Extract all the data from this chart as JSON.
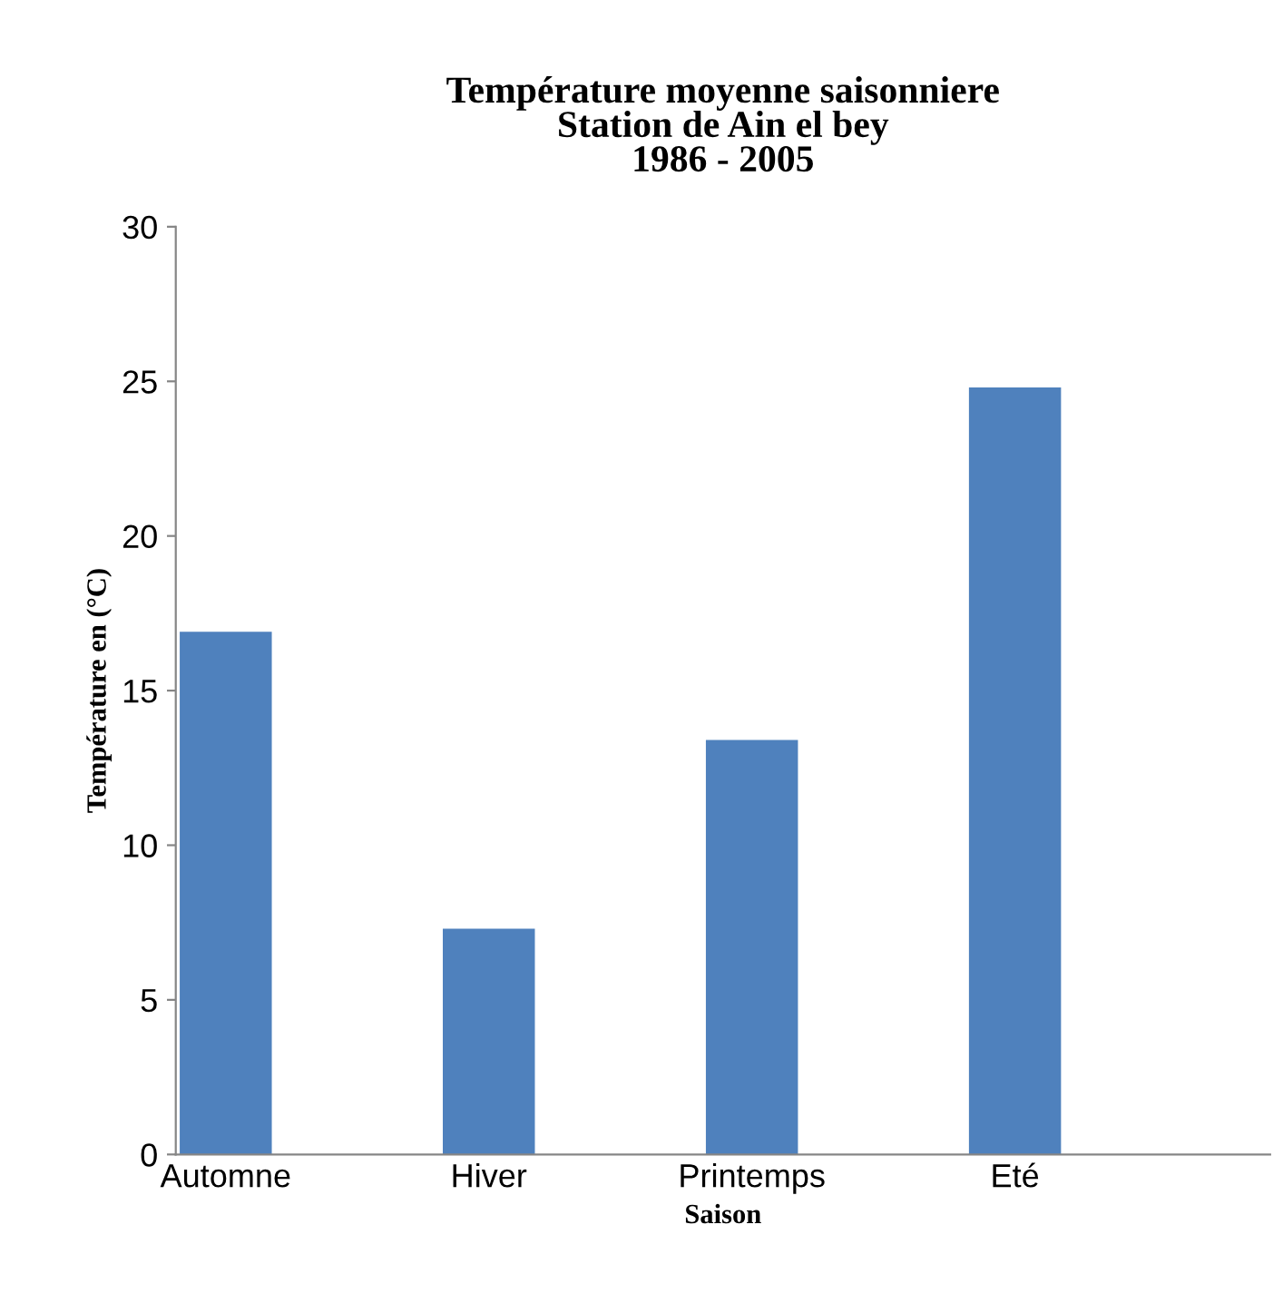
{
  "chart_data": {
    "type": "bar",
    "title": "Température moyenne saisonniere\nStation de Ain el bey\n1986 - 2005",
    "xlabel": "Saison",
    "ylabel": "Température en (°C)",
    "categories": [
      "Automne",
      "Hiver",
      "Printemps",
      "Eté"
    ],
    "values": [
      16.9,
      7.3,
      13.4,
      24.8
    ],
    "color": "#4f81bd",
    "ylim": [
      0,
      30
    ],
    "yticks": [
      0,
      5,
      10,
      15,
      20,
      25,
      30
    ],
    "grid": false
  }
}
